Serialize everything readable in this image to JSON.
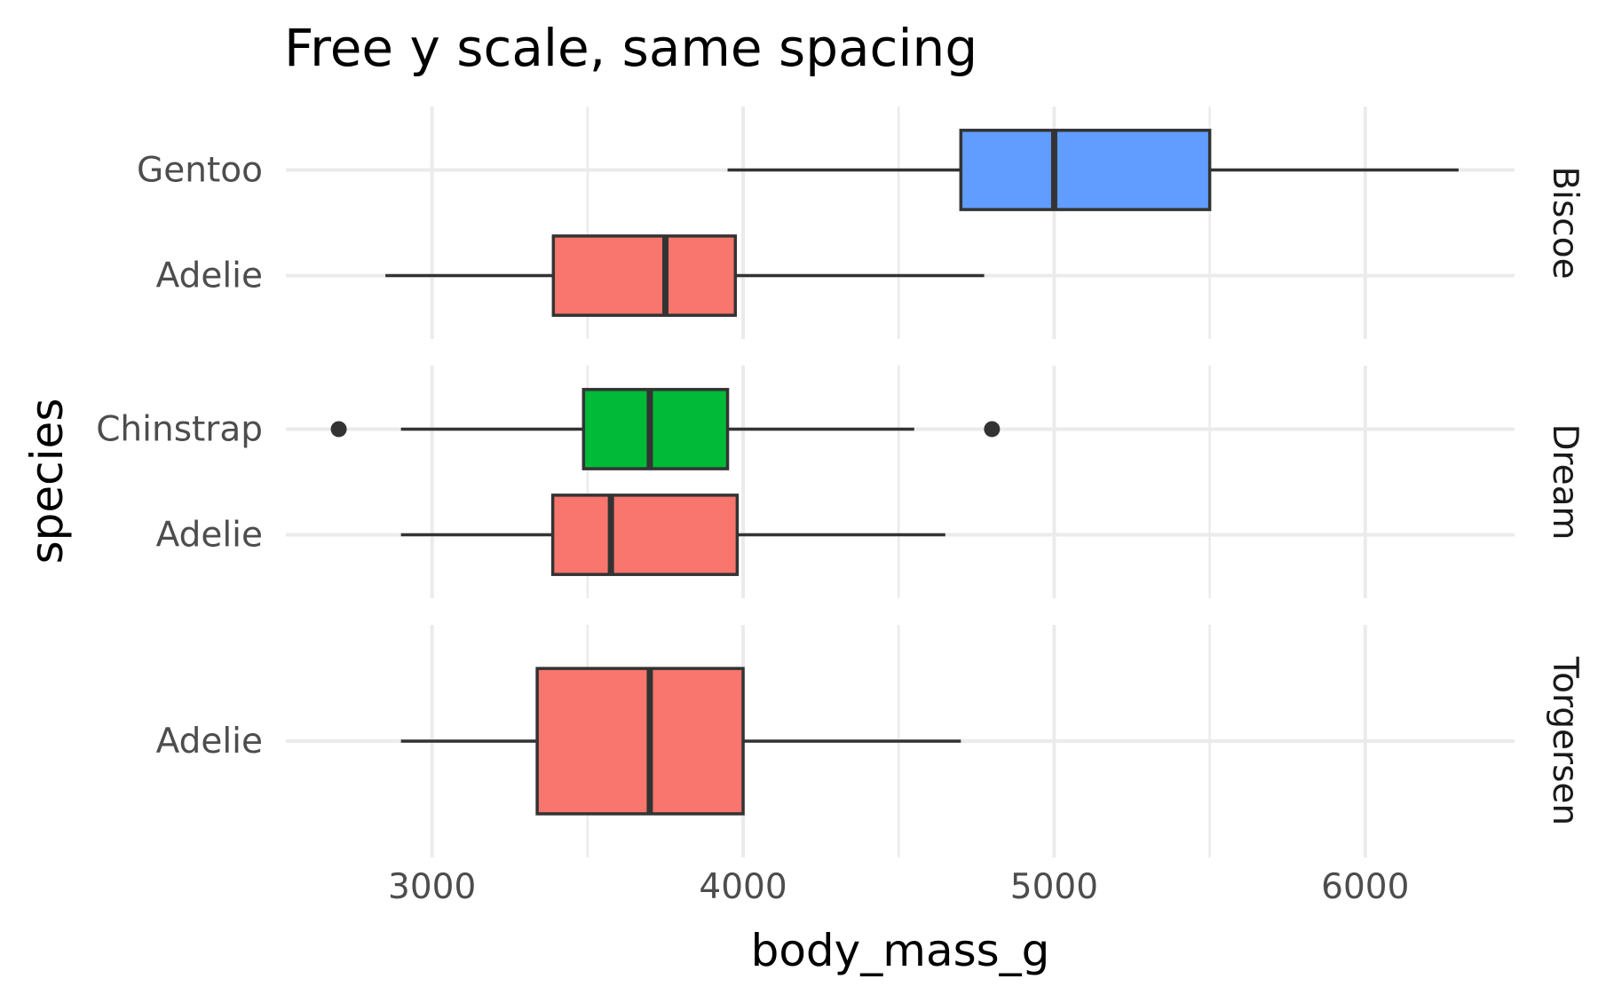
{
  "chart_data": {
    "type": "boxplot",
    "title": "Free y scale, same spacing",
    "xlabel": "body_mass_g",
    "ylabel": "species",
    "xlim": [
      2530,
      6480
    ],
    "x_ticks": [
      3000,
      4000,
      5000,
      6000
    ],
    "x_tick_labels": [
      "3000",
      "4000",
      "5000",
      "6000"
    ],
    "x_minor_ticks": [
      3500,
      4500,
      5500
    ],
    "grid": true,
    "legend": "none",
    "colors": {
      "Adelie": "#F8766D",
      "Chinstrap": "#00BA38",
      "Gentoo": "#619CFF",
      "outline": "#333333"
    },
    "facets": [
      {
        "name": "Biscoe",
        "categories": [
          "Adelie",
          "Gentoo"
        ],
        "boxes": [
          {
            "species": "Gentoo",
            "whisker_low": 3950,
            "q1": 4700,
            "median": 5000,
            "q3": 5500,
            "whisker_high": 6300,
            "outliers": []
          },
          {
            "species": "Adelie",
            "whisker_low": 2850,
            "q1": 3390,
            "median": 3750,
            "q3": 3975,
            "whisker_high": 4775,
            "outliers": []
          }
        ]
      },
      {
        "name": "Dream",
        "categories": [
          "Adelie",
          "Chinstrap"
        ],
        "boxes": [
          {
            "species": "Chinstrap",
            "whisker_low": 2900,
            "q1": 3487,
            "median": 3700,
            "q3": 3950,
            "whisker_high": 4550,
            "outliers": [
              2700,
              4800
            ]
          },
          {
            "species": "Adelie",
            "whisker_low": 2900,
            "q1": 3388,
            "median": 3575,
            "q3": 3981,
            "whisker_high": 4650,
            "outliers": []
          }
        ]
      },
      {
        "name": "Torgersen",
        "categories": [
          "Adelie"
        ],
        "boxes": [
          {
            "species": "Adelie",
            "whisker_low": 2900,
            "q1": 3338,
            "median": 3700,
            "q3": 4000,
            "whisker_high": 4700,
            "outliers": []
          }
        ]
      }
    ]
  }
}
